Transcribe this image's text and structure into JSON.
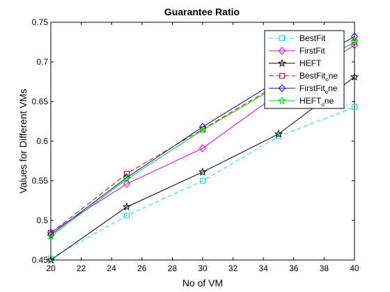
{
  "chart_data": {
    "type": "line",
    "title": "Guarantee Ratio",
    "xlabel": "No of VM",
    "ylabel": "Values for Different VMs",
    "xlim": [
      20,
      40
    ],
    "ylim": [
      0.45,
      0.75
    ],
    "xticks": [
      20,
      22,
      24,
      26,
      28,
      30,
      32,
      34,
      36,
      38,
      40
    ],
    "yticks": [
      0.45,
      0.5,
      0.55,
      0.6,
      0.65,
      0.7,
      0.75
    ],
    "xtick_labels": [
      "20",
      "22",
      "24",
      "26",
      "28",
      "30",
      "32",
      "34",
      "36",
      "38",
      "40"
    ],
    "ytick_labels": [
      "0.45",
      "0.5",
      "0.55",
      "0.6",
      "0.65",
      "0.7",
      "0.75"
    ],
    "legend_position": "top-right",
    "x": [
      20,
      25,
      30,
      35,
      40
    ],
    "series": [
      {
        "name": "BestFit",
        "name_main": "BestFit",
        "name_sub": "",
        "name_tail": "",
        "values": [
          0.452,
          0.506,
          0.55,
          0.606,
          0.643
        ],
        "color": "#00e5ee",
        "dash": "6,4",
        "marker": "square"
      },
      {
        "name": "FirstFit",
        "name_main": "FirstFit",
        "name_sub": "",
        "name_tail": "",
        "values": [
          0.485,
          0.546,
          0.591,
          0.66,
          0.721
        ],
        "color": "#e000e0",
        "dash": "",
        "marker": "diamond"
      },
      {
        "name": "HEFT",
        "name_main": "HEFT",
        "name_sub": "",
        "name_tail": "",
        "values": [
          0.45,
          0.517,
          0.561,
          0.609,
          0.681
        ],
        "color": "#000000",
        "dash": "",
        "marker": "star"
      },
      {
        "name": "BestFit_one",
        "name_main": "BestFit",
        "name_sub": "o",
        "name_tail": "ne",
        "values": [
          0.484,
          0.559,
          0.615,
          0.672,
          0.725
        ],
        "color": "#d40000",
        "dash": "7,4",
        "marker": "square"
      },
      {
        "name": "FirstFit_one",
        "name_main": "FirstFit",
        "name_sub": "o",
        "name_tail": "ne",
        "values": [
          0.482,
          0.554,
          0.618,
          0.677,
          0.732
        ],
        "color": "#0000e0",
        "dash": "",
        "marker": "diamond"
      },
      {
        "name": "HEFT_one",
        "name_main": "HEFT",
        "name_sub": "o",
        "name_tail": "ne",
        "values": [
          0.48,
          0.552,
          0.614,
          0.67,
          0.725
        ],
        "color": "#00dd00",
        "dash": "",
        "marker": "star"
      }
    ]
  }
}
